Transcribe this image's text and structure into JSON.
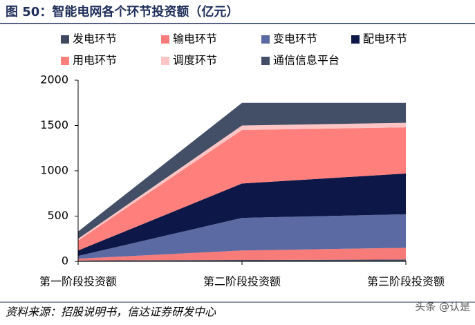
{
  "chart_data": {
    "type": "stacked_area",
    "title": "图 50：智能电网各个环节投资额（亿元）",
    "source": "资料来源：招股说明书，信达证券研发中心",
    "watermark": "头条 @认是",
    "categories": [
      "第一阶段投资额",
      "第二阶段投资额",
      "第三阶段投资额"
    ],
    "series": [
      {
        "name": "发电环节",
        "color": "#3d4a62",
        "values": [
          10,
          15,
          20
        ]
      },
      {
        "name": "输电环节",
        "color": "#f77b78",
        "values": [
          20,
          105,
          130
        ]
      },
      {
        "name": "变电环节",
        "color": "#5b6aa2",
        "values": [
          30,
          360,
          370
        ]
      },
      {
        "name": "配电环节",
        "color": "#0d1848",
        "values": [
          60,
          380,
          450
        ]
      },
      {
        "name": "用电环节",
        "color": "#ff7f7d",
        "values": [
          110,
          590,
          510
        ]
      },
      {
        "name": "调度环节",
        "color": "#ffc4c4",
        "values": [
          20,
          50,
          50
        ]
      },
      {
        "name": "通信信息平台",
        "color": "#434f66",
        "values": [
          80,
          250,
          220
        ]
      }
    ],
    "ylim": [
      0,
      2000
    ],
    "yticks": [
      0,
      500,
      1000,
      1500,
      2000
    ]
  }
}
